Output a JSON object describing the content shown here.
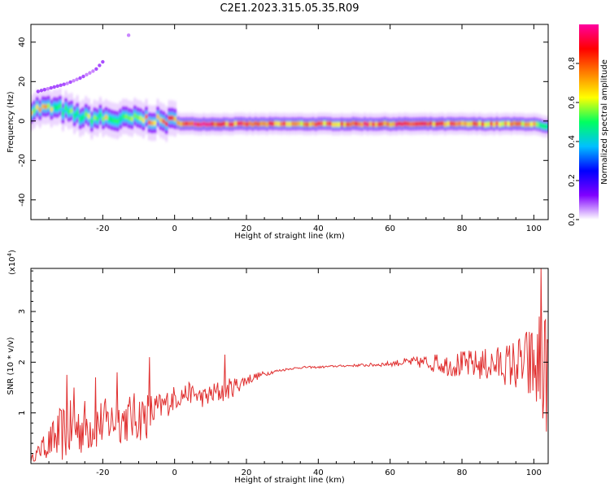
{
  "figure": {
    "title": "C2E1.2023.315.05.35.R09"
  },
  "chart_data": [
    {
      "type": "heatmap",
      "xlabel": "Height of straight line (km)",
      "ylabel": "Frequency (Hz)",
      "xlim": [
        -40,
        104
      ],
      "ylim": [
        -50,
        49
      ],
      "x_ticks": [
        -20,
        0,
        20,
        40,
        60,
        80,
        100
      ],
      "y_ticks": [
        -40,
        -20,
        0,
        20,
        40
      ],
      "colorbar": {
        "label": "Normalized spectral amplitude",
        "range": [
          0,
          1
        ],
        "ticks": [
          0.0,
          0.2,
          0.4,
          0.6,
          0.8
        ],
        "colormap": [
          "#ffffff",
          "#8000ff",
          "#0000ff",
          "#00c0ff",
          "#00ff60",
          "#ffff00",
          "#ff8000",
          "#ff0000",
          "#ff00a0"
        ]
      },
      "ridge": {
        "x": [
          -40,
          -36,
          -32,
          -28,
          -24,
          -20,
          -16,
          -12,
          -8,
          -4,
          0,
          2,
          10,
          20,
          30,
          40,
          50,
          60,
          70,
          80,
          90,
          100,
          103
        ],
        "frequency": [
          6,
          6.5,
          6,
          3,
          1.5,
          1.5,
          0.5,
          1,
          1,
          0,
          0,
          -1.5,
          -1.5,
          -1.5,
          -1.5,
          -1.5,
          -1.5,
          -1.5,
          -1.5,
          -1.5,
          -1.5,
          -1.5,
          -3
        ],
        "amplitude": [
          0.65,
          0.75,
          0.5,
          0.55,
          0.6,
          0.65,
          0.55,
          0.6,
          0.75,
          0.85,
          0.8,
          0.95,
          0.9,
          0.85,
          0.8,
          0.8,
          0.85,
          0.9,
          0.85,
          0.8,
          0.8,
          0.75,
          0.5
        ]
      },
      "harmonic_trace": {
        "x": [
          -38,
          -34,
          -30,
          -26,
          -22,
          -20,
          -12
        ],
        "frequency": [
          15,
          17,
          19,
          22,
          26,
          30,
          45
        ]
      }
    },
    {
      "type": "line",
      "xlabel": "Height of straight line (km)",
      "ylabel": "SNR (10 * v/v)",
      "scale_label": "(x10",
      "scale_exponent": "4",
      "scale_close": ")",
      "xlim": [
        -40,
        104
      ],
      "ylim": [
        0,
        3.85
      ],
      "x_ticks": [
        -20,
        0,
        20,
        40,
        60,
        80,
        100
      ],
      "y_ticks": [
        1,
        2,
        3
      ],
      "series": [
        {
          "color": "#e03030",
          "trend_x": [
            -40,
            -36,
            -32,
            -28,
            -24,
            -20,
            -16,
            -12,
            -8,
            -4,
            0,
            4,
            8,
            12,
            16,
            20,
            24,
            28,
            32,
            36,
            40,
            44,
            48,
            52,
            56,
            60,
            64,
            68,
            72,
            76,
            80,
            84,
            88,
            92,
            96,
            100,
            103
          ],
          "trend_y": [
            0.08,
            0.35,
            0.55,
            0.7,
            0.75,
            0.8,
            0.85,
            0.9,
            0.95,
            1.1,
            1.3,
            1.4,
            1.3,
            1.4,
            1.5,
            1.65,
            1.75,
            1.82,
            1.87,
            1.9,
            1.9,
            1.92,
            1.93,
            1.94,
            1.95,
            1.97,
            2.0,
            2.0,
            1.98,
            1.95,
            1.95,
            1.95,
            1.95,
            1.95,
            1.95,
            1.9,
            1.8
          ],
          "noise_x": [
            -40,
            -36,
            -32,
            -28,
            -24,
            -20,
            -16,
            -12,
            -8,
            -4,
            0,
            4,
            8,
            12,
            16,
            20,
            24,
            28,
            32,
            36,
            40,
            44,
            48,
            52,
            56,
            60,
            64,
            68,
            72,
            76,
            80,
            84,
            88,
            92,
            96,
            100,
            103
          ],
          "noise_y": [
            0.05,
            0.25,
            0.55,
            0.6,
            0.55,
            0.5,
            0.45,
            0.5,
            0.5,
            0.3,
            0.25,
            0.2,
            0.2,
            0.25,
            0.2,
            0.12,
            0.06,
            0.03,
            0.02,
            0.02,
            0.02,
            0.02,
            0.02,
            0.03,
            0.04,
            0.05,
            0.08,
            0.12,
            0.18,
            0.22,
            0.28,
            0.3,
            0.35,
            0.4,
            0.6,
            0.9,
            1.2
          ],
          "spikes_x": [
            -37,
            -30,
            -28,
            -22,
            -16,
            -7,
            14,
            73,
            101.5,
            102
          ],
          "spikes_y": [
            0.45,
            1.75,
            1.5,
            1.7,
            1.8,
            2.1,
            2.15,
            2.15,
            2.9,
            3.85
          ]
        }
      ]
    }
  ]
}
